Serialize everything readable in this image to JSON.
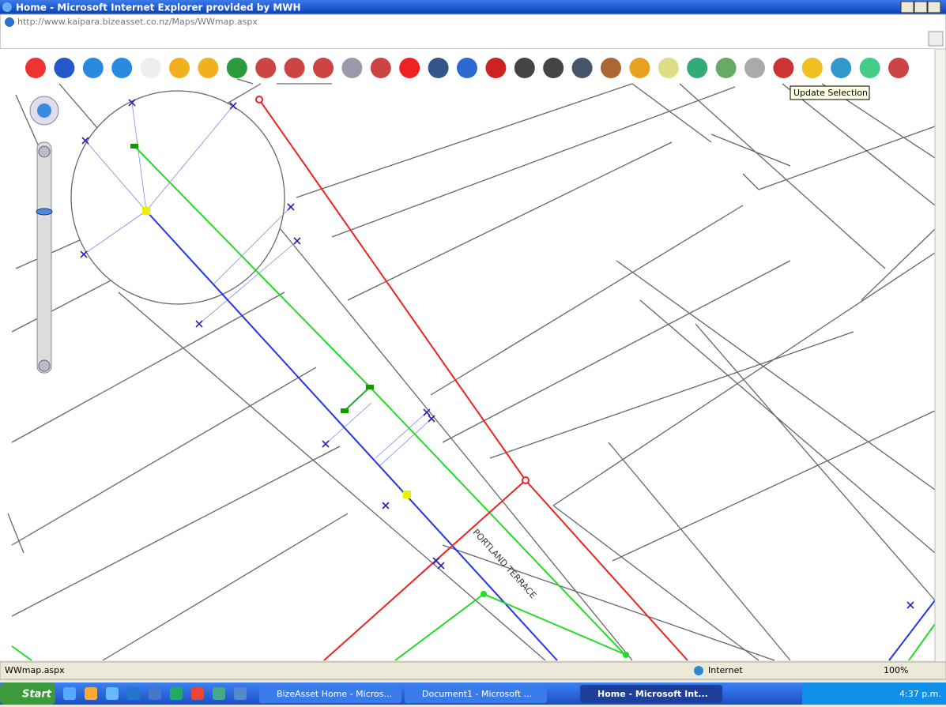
{
  "window": {
    "title": "Home - Microsoft Internet Explorer provided by MWH"
  },
  "address_bar": {
    "url": "http://www.kaipara.bizeasset.co.nz/Maps/WWmap.aspx"
  },
  "toolbar": {
    "tooltip": "Update Selection"
  },
  "map": {
    "street_label": "PORTLAND TERRACE"
  },
  "status_bar": {
    "text": "WWmap.aspx",
    "zone": "Internet",
    "zoom": "100%"
  },
  "taskbar": {
    "start": "Start",
    "items": [
      "BizeAsset Home - Micros...",
      "Document1 - Microsoft ...",
      "Home - Microsoft Int..."
    ],
    "clock": "4:37 p.m."
  }
}
